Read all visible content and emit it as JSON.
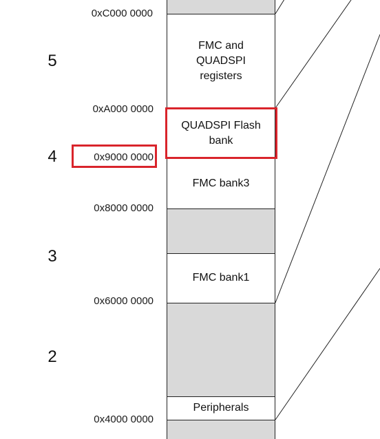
{
  "addresses": {
    "c000": "0xC000 0000",
    "a000": "0xA000 0000",
    "9000": "0x9000 0000",
    "8000": "0x8000 0000",
    "6000": "0x6000 0000",
    "4000": "0x4000 0000"
  },
  "regions": {
    "r5": "5",
    "r4": "4",
    "r3": "3",
    "r2": "2"
  },
  "blocks": {
    "fmc_quadspi_registers": "FMC and\nQUADSPI\nregisters",
    "quadspi_flash_bank": "QUADSPI Flash\nbank",
    "fmc_bank3": "FMC bank3",
    "fmc_bank1": "FMC bank1",
    "peripherals": "Peripherals"
  },
  "colors": {
    "highlight": "#d9242b",
    "reserved_fill": "#d9d9d9",
    "line": "#222222"
  }
}
